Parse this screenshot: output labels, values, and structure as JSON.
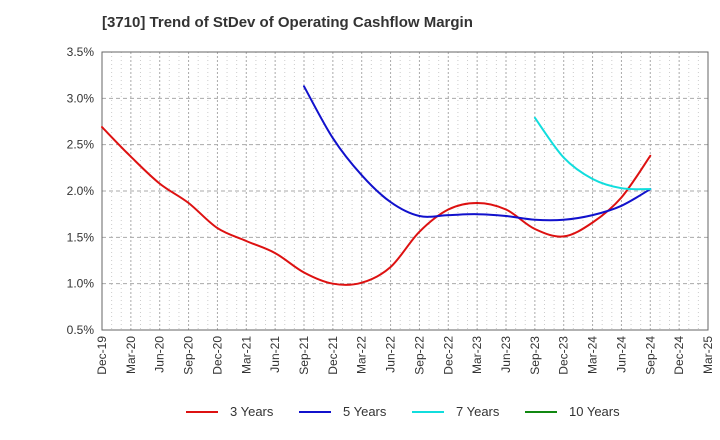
{
  "title": "[3710]  Trend of StDev of Operating Cashflow Margin",
  "chart_data": {
    "type": "line",
    "title": "[3710]  Trend of StDev of Operating Cashflow Margin",
    "xlabel": "",
    "ylabel": "",
    "ylim": [
      0.5,
      3.5
    ],
    "grid": true,
    "legend_position": "bottom",
    "y_ticks": [
      "0.5%",
      "1.0%",
      "1.5%",
      "2.0%",
      "2.5%",
      "3.0%",
      "3.5%"
    ],
    "y_tick_values": [
      0.5,
      1.0,
      1.5,
      2.0,
      2.5,
      3.0,
      3.5
    ],
    "x_tick_labels": [
      "Dec-19",
      "Mar-20",
      "Jun-20",
      "Sep-20",
      "Dec-20",
      "Mar-21",
      "Jun-21",
      "Sep-21",
      "Dec-21",
      "Mar-22",
      "Jun-22",
      "Sep-22",
      "Dec-22",
      "Mar-23",
      "Jun-23",
      "Sep-23",
      "Dec-23",
      "Mar-24",
      "Jun-24",
      "Sep-24",
      "Dec-24",
      "Mar-25"
    ],
    "x_range": [
      "Dec-19",
      "Mar-25"
    ],
    "series": [
      {
        "name": "3 Years",
        "color": "#dd1111",
        "points": [
          [
            "Dec-19",
            2.69
          ],
          [
            "Mar-20",
            2.37
          ],
          [
            "Jun-20",
            2.08
          ],
          [
            "Sep-20",
            1.87
          ],
          [
            "Dec-20",
            1.6
          ],
          [
            "Mar-21",
            1.46
          ],
          [
            "Jun-21",
            1.33
          ],
          [
            "Sep-21",
            1.12
          ],
          [
            "Dec-21",
            1.0
          ],
          [
            "Mar-22",
            1.01
          ],
          [
            "Jun-22",
            1.18
          ],
          [
            "Sep-22",
            1.56
          ],
          [
            "Dec-22",
            1.8
          ],
          [
            "Mar-23",
            1.87
          ],
          [
            "Jun-23",
            1.8
          ],
          [
            "Sep-23",
            1.59
          ],
          [
            "Dec-23",
            1.51
          ],
          [
            "Mar-24",
            1.66
          ],
          [
            "Jun-24",
            1.93
          ],
          [
            "Sep-24",
            2.38
          ]
        ]
      },
      {
        "name": "5 Years",
        "color": "#1111cc",
        "points": [
          [
            "Sep-21",
            3.13
          ],
          [
            "Dec-21",
            2.57
          ],
          [
            "Mar-22",
            2.17
          ],
          [
            "Jun-22",
            1.88
          ],
          [
            "Sep-22",
            1.73
          ],
          [
            "Dec-22",
            1.74
          ],
          [
            "Mar-23",
            1.75
          ],
          [
            "Jun-23",
            1.73
          ],
          [
            "Sep-23",
            1.69
          ],
          [
            "Dec-23",
            1.69
          ],
          [
            "Mar-24",
            1.74
          ],
          [
            "Jun-24",
            1.84
          ],
          [
            "Sep-24",
            2.02
          ]
        ]
      },
      {
        "name": "7 Years",
        "color": "#11dddd",
        "points": [
          [
            "Sep-23",
            2.79
          ],
          [
            "Dec-23",
            2.36
          ],
          [
            "Mar-24",
            2.13
          ],
          [
            "Jun-24",
            2.03
          ],
          [
            "Sep-24",
            2.02
          ]
        ]
      },
      {
        "name": "10 Years",
        "color": "#118811",
        "points": []
      }
    ]
  }
}
